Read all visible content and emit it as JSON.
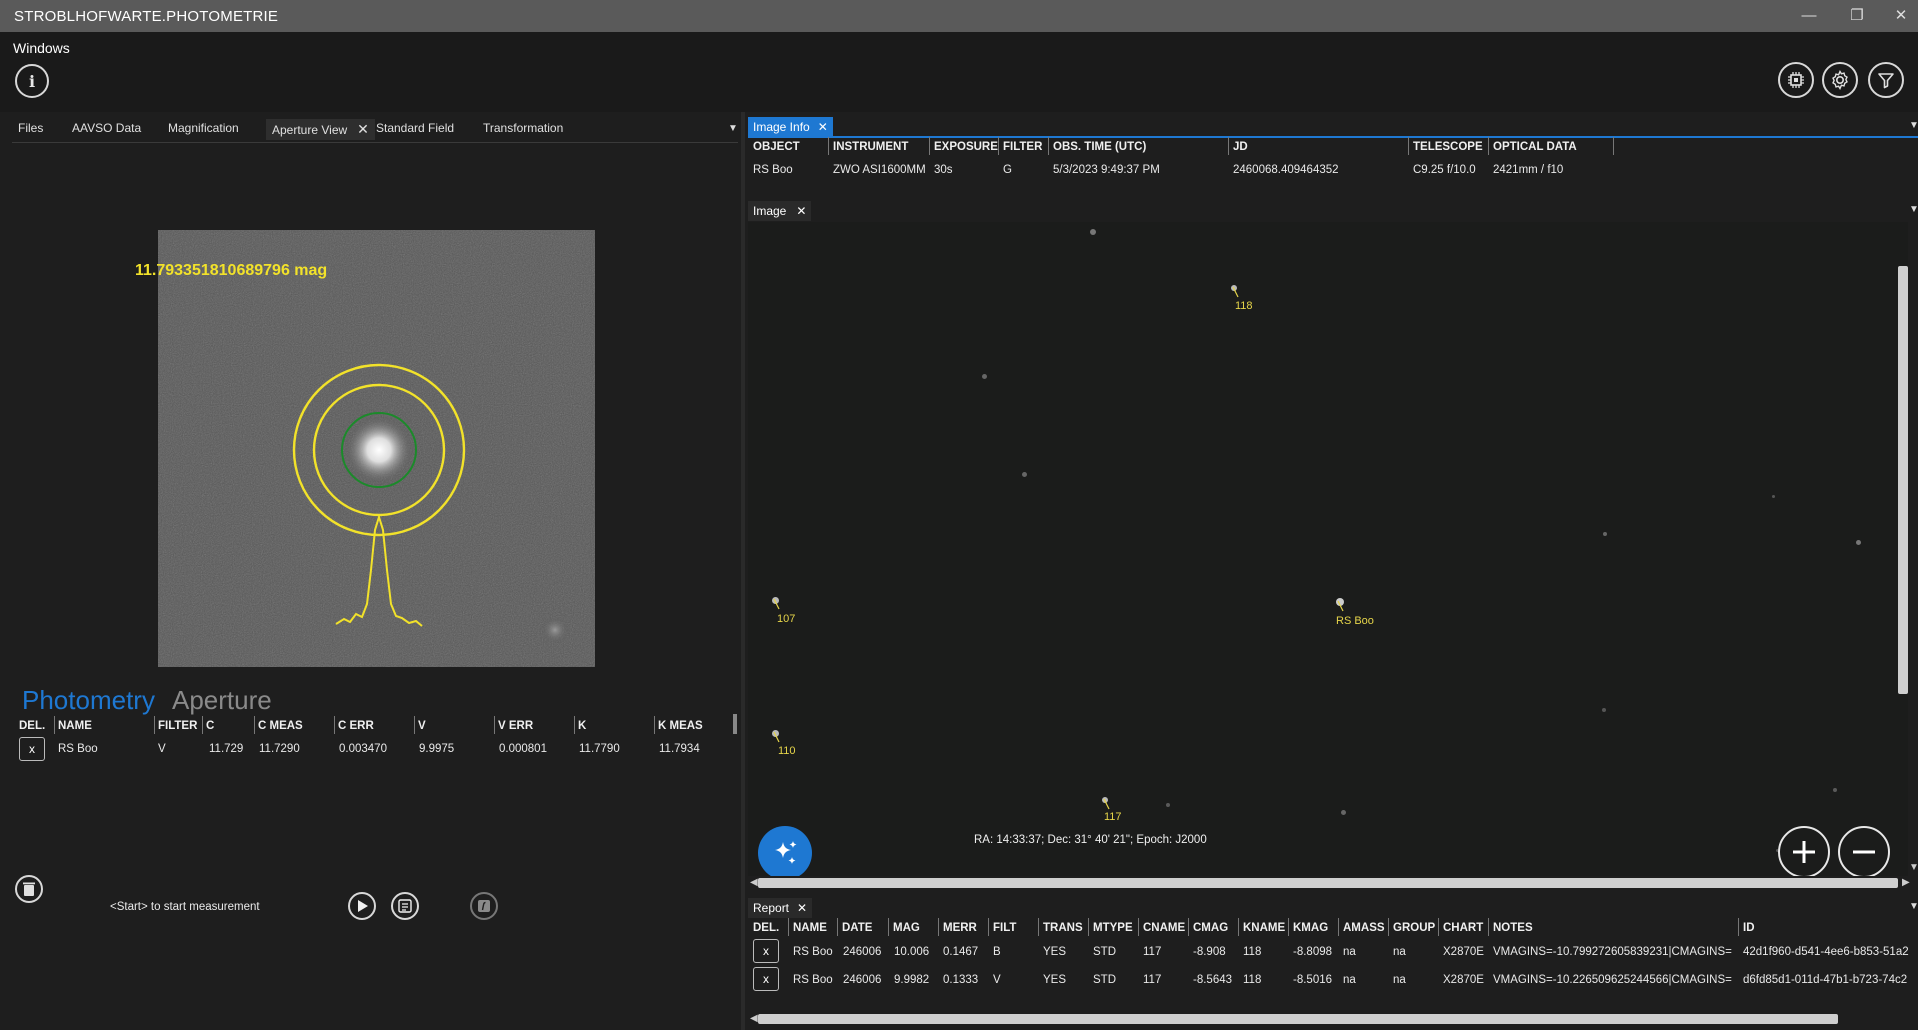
{
  "window": {
    "title": "STROBLHOFWARTE.PHOTOMETRIE",
    "minimize": "—",
    "restore": "❐",
    "close": "✕"
  },
  "menu": {
    "windows": "Windows"
  },
  "left": {
    "tabs": [
      {
        "label": "Files"
      },
      {
        "label": "AAVSO Data"
      },
      {
        "label": "Magnification"
      },
      {
        "label": "Aperture View",
        "close": "✕"
      },
      {
        "label": "Standard Field"
      },
      {
        "label": "Transformation"
      }
    ],
    "mag_label": "11.793351810689796 mag",
    "nav": {
      "photometry": "Photometry",
      "aperture": "Aperture"
    },
    "table": {
      "headers": [
        "DEL.",
        "NAME",
        "FILTER",
        "C",
        "C MEAS",
        "C ERR",
        "V",
        "V ERR",
        "K",
        "K MEAS"
      ],
      "rows": [
        {
          "del": "x",
          "name": "RS Boo",
          "filter": "V",
          "c": "11.729",
          "c_meas": "11.7290",
          "c_err": "0.003470",
          "v": "9.9975",
          "v_err": "0.000801",
          "k": "11.7790",
          "k_meas": "11.7934"
        }
      ]
    },
    "start_hint": "<Start> to start measurement"
  },
  "image_info": {
    "tab": "Image Info",
    "headers": [
      "OBJECT",
      "INSTRUMENT",
      "EXPOSURE",
      "FILTER",
      "OBS. TIME (UTC)",
      "JD",
      "TELESCOPE",
      "OPTICAL DATA"
    ],
    "row": {
      "object": "RS Boo",
      "instrument": "ZWO ASI1600MM",
      "exposure": "30s",
      "filter": "G",
      "obs_time": "5/3/2023 9:49:37 PM",
      "jd": "2460068.409464352",
      "telescope": "C9.25 f/10.0",
      "optical": "2421mm / f10"
    }
  },
  "image": {
    "tab": "Image",
    "stars": {
      "s118": "118",
      "s107": "107",
      "rsboo": "RS Boo",
      "s110": "110",
      "s117": "117"
    },
    "coords": "RA: 14:33:37; Dec: 31° 40' 21\"; Epoch: J2000"
  },
  "report": {
    "tab": "Report",
    "headers": [
      "DEL.",
      "NAME",
      "DATE",
      "MAG",
      "MERR",
      "FILT",
      "TRANS",
      "MTYPE",
      "CNAME",
      "CMAG",
      "KNAME",
      "KMAG",
      "AMASS",
      "GROUP",
      "CHART",
      "NOTES",
      "ID"
    ],
    "rows": [
      {
        "del": "x",
        "name": "RS Boo",
        "date": "246006",
        "mag": "10.006",
        "merr": "0.1467",
        "filt": "B",
        "trans": "YES",
        "mtype": "STD",
        "cname": "117",
        "cmag": "-8.908",
        "kname": "118",
        "kmag": "-8.8098",
        "amass": "na",
        "group": "na",
        "chart": "X2870E",
        "notes": "VMAGINS=-10.799272605839231|CMAGINS=",
        "id": "42d1f960-d541-4ee6-b853-51a2"
      },
      {
        "del": "x",
        "name": "RS Boo",
        "date": "246006",
        "mag": "9.9982",
        "merr": "0.1333",
        "filt": "V",
        "trans": "YES",
        "mtype": "STD",
        "cname": "117",
        "cmag": "-8.5643",
        "kname": "118",
        "kmag": "-8.5016",
        "amass": "na",
        "group": "na",
        "chart": "X2870E",
        "notes": "VMAGINS=-10.226509625244566|CMAGINS=",
        "id": "d6fd85d1-011d-47b1-b723-74c2"
      }
    ]
  },
  "colors": {
    "accent": "#1e78d2",
    "annot": "#e6d54a",
    "aperture": "#f2e22a"
  }
}
